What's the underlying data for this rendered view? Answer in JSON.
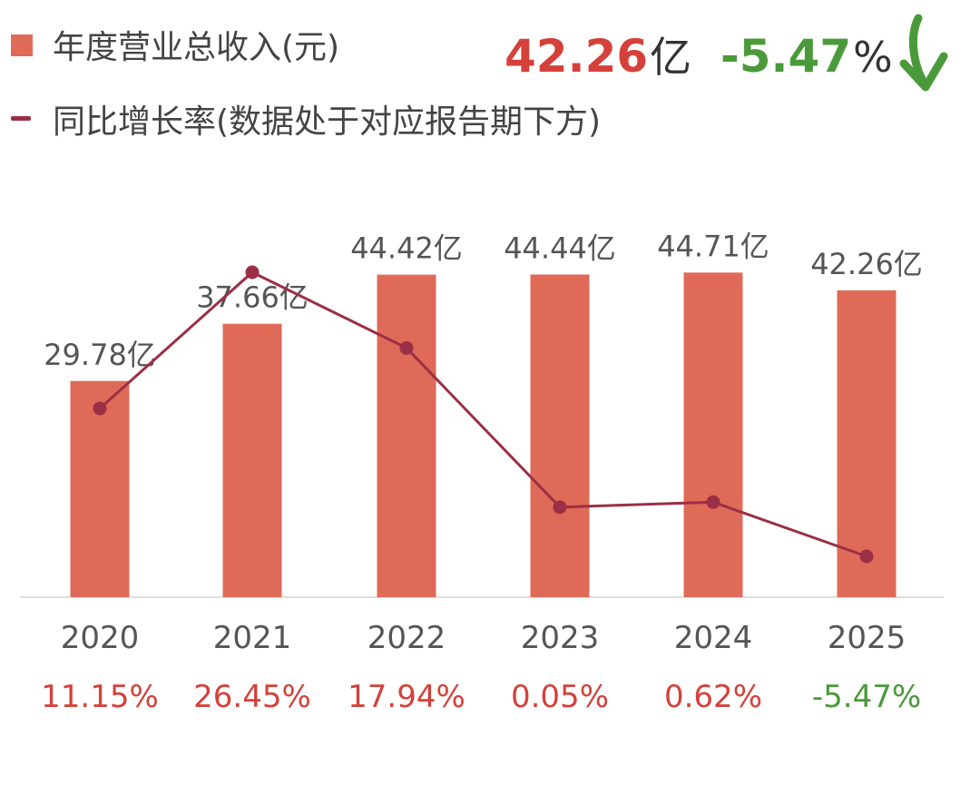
{
  "colors": {
    "bar": "#E06A58",
    "line": "#9B2F45",
    "positive": "#D4413A",
    "negative": "#4A9A3A",
    "axis": "#DDDDDD"
  },
  "legend": {
    "revenue_label": "年度营业总收入(元)",
    "growth_label": "同比增长率(数据处于对应报告期下方)"
  },
  "headline": {
    "value": "42.26",
    "value_unit": "亿",
    "change": "-5.47",
    "change_unit": "%",
    "trend_icon": "arrow-down-icon"
  },
  "chart_data": {
    "type": "bar",
    "categories": [
      "2020",
      "2021",
      "2022",
      "2023",
      "2024",
      "2025"
    ],
    "series": [
      {
        "name": "年度营业总收入(元)",
        "type": "bar",
        "values": [
          29.78,
          37.66,
          44.42,
          44.44,
          44.71,
          42.26
        ],
        "labels": [
          "29.78亿",
          "37.66亿",
          "44.42亿",
          "44.44亿",
          "44.71亿",
          "42.26亿"
        ]
      },
      {
        "name": "同比增长率(数据处于对应报告期下方)",
        "type": "line",
        "values": [
          11.15,
          26.45,
          17.94,
          0.05,
          0.62,
          -5.47
        ],
        "labels": [
          "11.15%",
          "26.45%",
          "17.94%",
          "0.05%",
          "0.62%",
          "-5.47%"
        ]
      }
    ]
  }
}
